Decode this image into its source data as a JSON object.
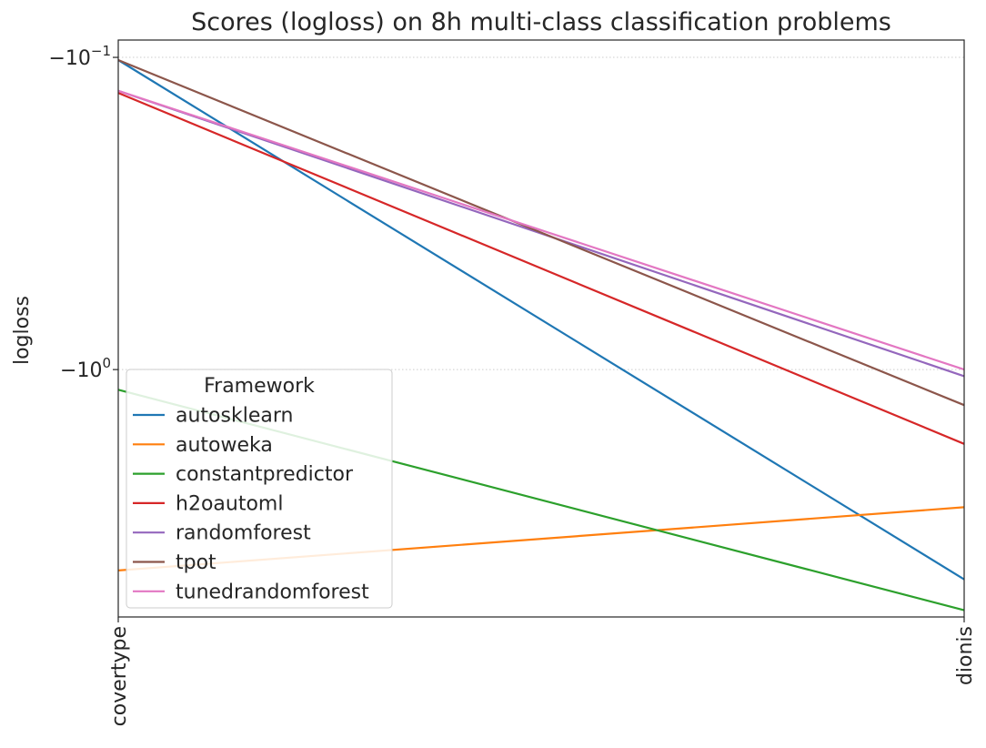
{
  "chart_data": {
    "type": "line",
    "title": "Scores (logloss) on 8h multi-class classification problems",
    "xlabel": "",
    "ylabel": "logloss",
    "categories": [
      "covertype",
      "dionis"
    ],
    "y_scale": "symlog",
    "y_ticks": [
      -0.1,
      -1
    ],
    "y_tick_labels": [
      {
        "base": "−10",
        "exp": "−1"
      },
      {
        "base": "−10",
        "exp": "0"
      }
    ],
    "ylim": [
      -6.2,
      -0.088
    ],
    "grid": "horizontal dotted",
    "legend_title": "Framework",
    "legend_position": "lower-left",
    "series": [
      {
        "name": "autosklearn",
        "color": "#1f77b4",
        "values": [
          -0.102,
          -4.7
        ]
      },
      {
        "name": "autoweka",
        "color": "#ff7f0e",
        "values": [
          -4.4,
          -2.76
        ]
      },
      {
        "name": "constantpredictor",
        "color": "#2ca02c",
        "values": [
          -1.16,
          -5.9
        ]
      },
      {
        "name": "h2oautoml",
        "color": "#d62728",
        "values": [
          -0.13,
          -1.73
        ]
      },
      {
        "name": "randomforest",
        "color": "#9467bd",
        "values": [
          -0.128,
          -1.05
        ]
      },
      {
        "name": "tpot",
        "color": "#8c564b",
        "values": [
          -0.102,
          -1.3
        ]
      },
      {
        "name": "tunedrandomforest",
        "color": "#e377c2",
        "values": [
          -0.128,
          -1.0
        ]
      }
    ]
  }
}
